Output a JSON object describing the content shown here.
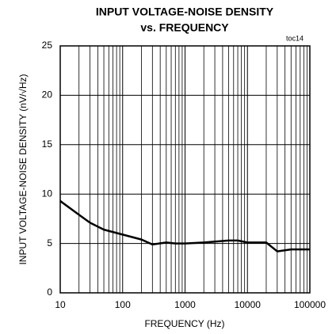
{
  "chart_data": {
    "type": "line",
    "title": "INPUT VOLTAGE-NOISE DENSITY",
    "subtitle": "vs. FREQUENCY",
    "annotation": "toc14",
    "xlabel": "FREQUENCY (Hz)",
    "ylabel": "INPUT VOLTAGE-NOISE DENSITY (nV/√Hz)",
    "x": [
      10,
      20,
      30,
      50,
      100,
      200,
      300,
      500,
      700,
      1000,
      2000,
      5000,
      7000,
      10000,
      20000,
      30000,
      50000,
      100000
    ],
    "values": [
      9.3,
      7.9,
      7.1,
      6.4,
      5.9,
      5.4,
      4.9,
      5.1,
      5.0,
      5.0,
      5.1,
      5.3,
      5.3,
      5.1,
      5.1,
      4.2,
      4.4,
      4.4
    ],
    "color": "#000000",
    "xlog": true,
    "xlim": [
      10,
      100000
    ],
    "ylim": [
      0,
      25
    ],
    "xticks": [
      10,
      100,
      1000,
      10000,
      100000
    ],
    "xminorticks": [
      20,
      30,
      40,
      50,
      60,
      70,
      80,
      90,
      200,
      300,
      400,
      500,
      600,
      700,
      800,
      900,
      2000,
      3000,
      4000,
      5000,
      6000,
      7000,
      8000,
      9000,
      20000,
      30000,
      40000,
      50000,
      60000,
      70000,
      80000,
      90000
    ],
    "yticks": [
      0,
      5,
      10,
      15,
      20,
      25
    ],
    "grid": true
  }
}
